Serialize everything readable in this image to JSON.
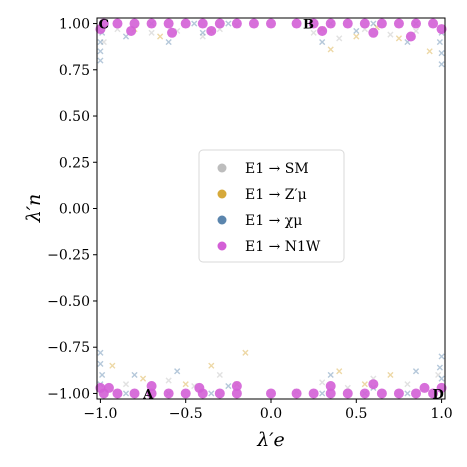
{
  "chart_data": {
    "type": "scatter",
    "xlabel": "λ′e",
    "ylabel": "λ′n",
    "xlim": [
      -1.02,
      1.02
    ],
    "ylim": [
      -1.03,
      1.03
    ],
    "x_ticks": [
      -1.0,
      -0.5,
      0.0,
      0.5,
      1.0
    ],
    "x_tick_labels": [
      "−1.0",
      "−0.5",
      "0.0",
      "0.5",
      "1.0"
    ],
    "y_ticks": [
      1.0,
      0.75,
      0.5,
      0.25,
      0.0,
      -0.25,
      -0.5,
      -0.75,
      -1.0
    ],
    "y_tick_labels": [
      "1.00",
      "0.75",
      "0.50",
      "0.25",
      "0.00",
      "−0.25",
      "−0.50",
      "−0.75",
      "−1.00"
    ],
    "grid": false,
    "legend_placement": "center",
    "legend": [
      {
        "label": "E1 → SM",
        "color": "#bdbdbd"
      },
      {
        "label": "E1 → Z′μ",
        "color": "#d6a93a"
      },
      {
        "label": "E1 → χμ",
        "color": "#5b85ad"
      },
      {
        "label": "E1 → N1W",
        "color": "#d35fd6"
      }
    ],
    "annotations": [
      {
        "text": "A",
        "x": -0.72,
        "y": -1.0
      },
      {
        "text": "B",
        "x": 0.22,
        "y": 1.0
      },
      {
        "text": "C",
        "x": -0.98,
        "y": 1.0
      },
      {
        "text": "D",
        "x": 0.98,
        "y": -1.0
      }
    ],
    "series": [
      {
        "name": "E1 → SM",
        "color": "#bdbdbd",
        "marker": "cross",
        "points": [
          [
            -0.9,
            0.97
          ],
          [
            -0.7,
            0.95
          ],
          [
            -0.55,
            0.96
          ],
          [
            -0.4,
            0.93
          ],
          [
            -0.3,
            0.97
          ],
          [
            0.25,
            0.95
          ],
          [
            0.4,
            0.92
          ],
          [
            0.55,
            0.97
          ],
          [
            0.7,
            0.94
          ],
          [
            0.85,
            0.96
          ],
          [
            -0.85,
            -0.95
          ],
          [
            -0.6,
            -0.93
          ],
          [
            -0.45,
            -0.96
          ],
          [
            -0.3,
            -0.9
          ],
          [
            0.3,
            -0.94
          ],
          [
            0.45,
            -0.97
          ],
          [
            0.6,
            -0.92
          ],
          [
            0.8,
            -0.95
          ],
          [
            -0.98,
            0.9
          ],
          [
            0.98,
            -0.9
          ],
          [
            -0.2,
            0.99
          ],
          [
            0.15,
            -0.99
          ]
        ]
      },
      {
        "name": "E1 → Z′μ",
        "color": "#d6a93a",
        "marker": "cross",
        "points": [
          [
            -0.8,
            0.97
          ],
          [
            -0.65,
            0.93
          ],
          [
            -0.35,
            0.96
          ],
          [
            0.3,
            0.97
          ],
          [
            0.5,
            0.93
          ],
          [
            0.62,
            0.98
          ],
          [
            0.75,
            0.92
          ],
          [
            -0.75,
            -0.92
          ],
          [
            -0.5,
            -0.95
          ],
          [
            -0.35,
            -0.85
          ],
          [
            -0.2,
            -0.95
          ],
          [
            0.4,
            -0.88
          ],
          [
            0.55,
            -0.95
          ],
          [
            0.7,
            -0.9
          ],
          [
            -0.93,
            -0.85
          ],
          [
            0.93,
            0.85
          ],
          [
            -0.15,
            -0.78
          ],
          [
            0.35,
            0.86
          ]
        ]
      },
      {
        "name": "E1 → χμ",
        "color": "#5b85ad",
        "marker": "cross",
        "points": [
          [
            -1.0,
            0.8
          ],
          [
            -1.0,
            0.85
          ],
          [
            -1.0,
            0.9
          ],
          [
            -0.99,
            0.95
          ],
          [
            1.0,
            0.78
          ],
          [
            1.0,
            0.84
          ],
          [
            0.99,
            0.9
          ],
          [
            1.0,
            0.95
          ],
          [
            -1.0,
            -0.78
          ],
          [
            -1.0,
            -0.84
          ],
          [
            -0.99,
            -0.9
          ],
          [
            -1.0,
            -0.95
          ],
          [
            1.0,
            -0.8
          ],
          [
            0.99,
            -0.86
          ],
          [
            1.0,
            -0.92
          ],
          [
            -0.85,
            0.93
          ],
          [
            -0.6,
            0.9
          ],
          [
            -0.4,
            0.95
          ],
          [
            0.3,
            0.9
          ],
          [
            0.5,
            0.96
          ],
          [
            0.8,
            0.9
          ],
          [
            -0.8,
            -0.9
          ],
          [
            -0.55,
            -0.88
          ],
          [
            -0.25,
            -0.96
          ],
          [
            0.35,
            -0.9
          ],
          [
            0.6,
            -0.97
          ],
          [
            0.85,
            -0.88
          ],
          [
            -0.7,
            1.0
          ],
          [
            -0.45,
            1.0
          ],
          [
            -0.25,
            1.0
          ],
          [
            0.35,
            1.0
          ],
          [
            0.6,
            1.0
          ],
          [
            0.85,
            1.0
          ],
          [
            -0.85,
            -1.0
          ],
          [
            -0.6,
            -1.0
          ],
          [
            -0.35,
            -1.0
          ],
          [
            0.3,
            -1.0
          ],
          [
            0.55,
            -1.0
          ],
          [
            0.8,
            -1.0
          ]
        ]
      },
      {
        "name": "E1 → N1W",
        "color": "#d35fd6",
        "marker": "circle",
        "points": [
          [
            -0.98,
            1.0
          ],
          [
            -0.9,
            1.0
          ],
          [
            -0.8,
            1.0
          ],
          [
            -0.7,
            1.0
          ],
          [
            -0.6,
            1.0
          ],
          [
            -0.5,
            1.0
          ],
          [
            -0.4,
            1.0
          ],
          [
            -0.3,
            1.0
          ],
          [
            -0.2,
            1.0
          ],
          [
            -0.1,
            1.0
          ],
          [
            0.0,
            1.0
          ],
          [
            0.15,
            1.0
          ],
          [
            0.25,
            1.0
          ],
          [
            0.35,
            1.0
          ],
          [
            0.45,
            1.0
          ],
          [
            0.55,
            1.0
          ],
          [
            0.65,
            1.0
          ],
          [
            0.75,
            1.0
          ],
          [
            0.85,
            1.0
          ],
          [
            0.95,
            1.0
          ],
          [
            -0.82,
            0.96
          ],
          [
            -0.58,
            0.95
          ],
          [
            -0.35,
            0.96
          ],
          [
            0.3,
            0.96
          ],
          [
            0.6,
            0.95
          ],
          [
            0.82,
            0.93
          ],
          [
            -0.98,
            -1.0
          ],
          [
            -0.9,
            -1.0
          ],
          [
            -0.8,
            -1.0
          ],
          [
            -0.7,
            -1.0
          ],
          [
            -0.6,
            -1.0
          ],
          [
            -0.5,
            -1.0
          ],
          [
            -0.4,
            -1.0
          ],
          [
            -0.3,
            -1.0
          ],
          [
            -0.2,
            -1.0
          ],
          [
            0.0,
            -1.0
          ],
          [
            0.15,
            -1.0
          ],
          [
            0.25,
            -1.0
          ],
          [
            0.35,
            -1.0
          ],
          [
            0.45,
            -1.0
          ],
          [
            0.55,
            -1.0
          ],
          [
            0.65,
            -1.0
          ],
          [
            0.75,
            -1.0
          ],
          [
            0.85,
            -1.0
          ],
          [
            0.95,
            -1.0
          ],
          [
            -0.95,
            -0.97
          ],
          [
            -0.7,
            -0.96
          ],
          [
            -0.42,
            -0.97
          ],
          [
            -0.2,
            -0.96
          ],
          [
            0.35,
            -0.96
          ],
          [
            0.6,
            -0.95
          ],
          [
            0.9,
            -0.97
          ],
          [
            -1.0,
            0.97
          ],
          [
            1.0,
            0.97
          ],
          [
            -1.0,
            -0.97
          ],
          [
            1.0,
            -0.97
          ]
        ]
      }
    ]
  }
}
